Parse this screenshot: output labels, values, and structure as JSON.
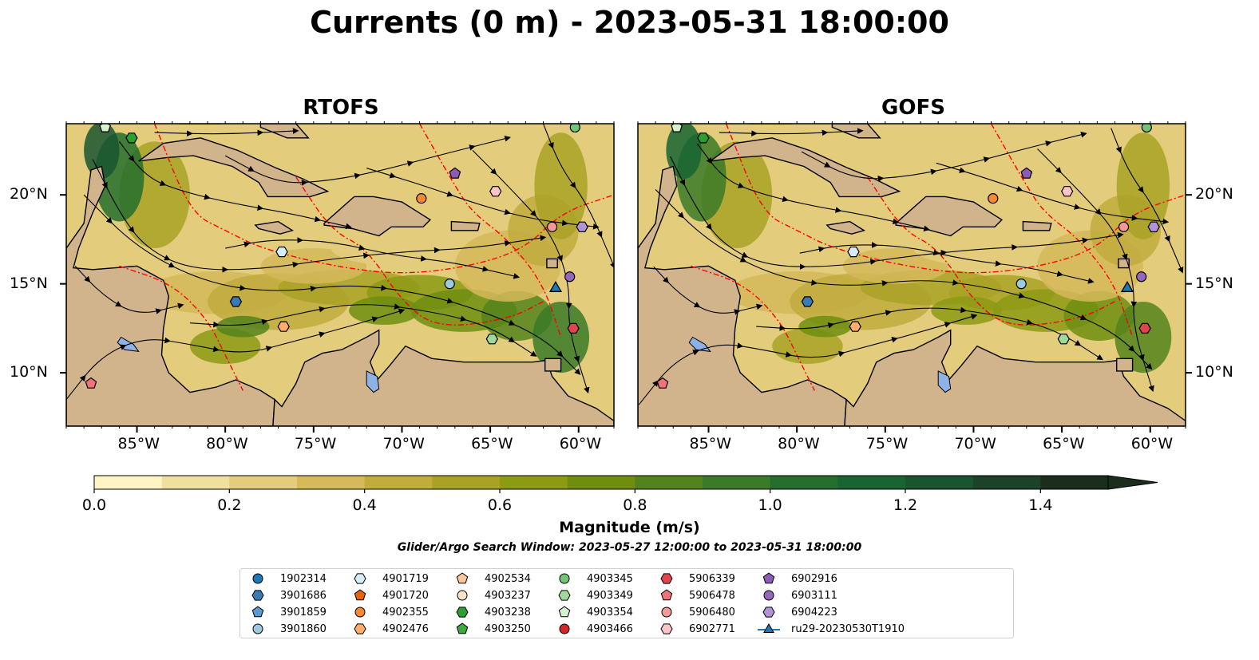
{
  "title": "Currents (0 m) - 2023-05-31 18:00:00",
  "panels": [
    {
      "title": "RTOFS"
    },
    {
      "title": "GOFS"
    }
  ],
  "axes": {
    "lon_ticks": [
      "85°W",
      "80°W",
      "75°W",
      "70°W",
      "65°W",
      "60°W"
    ],
    "lat_ticks": [
      "20°N",
      "15°N",
      "10°N"
    ],
    "lon_range": [
      -89,
      -58
    ],
    "lat_range": [
      7,
      24
    ]
  },
  "colorbar": {
    "label": "Magnitude (m/s)",
    "ticks": [
      "0.0",
      "0.2",
      "0.4",
      "0.6",
      "0.8",
      "1.0",
      "1.2",
      "1.4"
    ],
    "range": [
      0,
      1.5
    ],
    "extend": "max",
    "colors": [
      "#fdf5c4",
      "#f0e0a0",
      "#e3cc7c",
      "#d5b95a",
      "#c1ac3e",
      "#a9a227",
      "#8d9a14",
      "#6f8e10",
      "#54821c",
      "#3b7a28",
      "#256e2e",
      "#186432",
      "#1a5530",
      "#1c4229",
      "#1b2e1d"
    ]
  },
  "search_window": "Glider/Argo Search Window: 2023-05-27 12:00:00 to 2023-05-31 18:00:00",
  "colors": {
    "land": "#d2b48c",
    "eez": "#ff0000",
    "lake": "#8fb2e6",
    "streamline": "#000000"
  },
  "legend": [
    {
      "label": "1902314",
      "marker": "circle",
      "color": "#1f77b4"
    },
    {
      "label": "3901686",
      "marker": "hexagon",
      "color": "#3a7ab5"
    },
    {
      "label": "3901859",
      "marker": "pentagon",
      "color": "#5b9bd5"
    },
    {
      "label": "3901860",
      "marker": "circle",
      "color": "#9ecae1"
    },
    {
      "label": "4901719",
      "marker": "hexagon",
      "color": "#d6ecf8"
    },
    {
      "label": "4901720",
      "marker": "pentagon",
      "color": "#e6640f"
    },
    {
      "label": "4902355",
      "marker": "circle",
      "color": "#f58a33"
    },
    {
      "label": "4902476",
      "marker": "hexagon",
      "color": "#fdae6b"
    },
    {
      "label": "4902534",
      "marker": "pentagon",
      "color": "#fdc79a"
    },
    {
      "label": "4903237",
      "marker": "circle",
      "color": "#fee3c8"
    },
    {
      "label": "4903238",
      "marker": "hexagon",
      "color": "#2ca02c"
    },
    {
      "label": "4903250",
      "marker": "pentagon",
      "color": "#3daa3d"
    },
    {
      "label": "4903345",
      "marker": "circle",
      "color": "#74c476"
    },
    {
      "label": "4903349",
      "marker": "hexagon",
      "color": "#a1d99b"
    },
    {
      "label": "4903354",
      "marker": "pentagon",
      "color": "#d4f2cf"
    },
    {
      "label": "4903466",
      "marker": "circle",
      "color": "#d62728"
    },
    {
      "label": "5906339",
      "marker": "hexagon",
      "color": "#e0444d"
    },
    {
      "label": "5906478",
      "marker": "pentagon",
      "color": "#ef7378"
    },
    {
      "label": "5906480",
      "marker": "circle",
      "color": "#f4999a"
    },
    {
      "label": "6902771",
      "marker": "hexagon",
      "color": "#fbc4c8"
    },
    {
      "label": "6902916",
      "marker": "pentagon",
      "color": "#8c5bb5"
    },
    {
      "label": "6903111",
      "marker": "circle",
      "color": "#9467bd"
    },
    {
      "label": "6904223",
      "marker": "hexagon",
      "color": "#b294d6"
    },
    {
      "label": "ru29-20230530T1910",
      "marker": "triangle-line",
      "color": "#1f77b4"
    }
  ],
  "floats": [
    {
      "id": "4903238",
      "lon": -85.3,
      "lat": 23.2
    },
    {
      "id": "4903354",
      "lon": -86.8,
      "lat": 23.8
    },
    {
      "id": "4903345",
      "lon": -60.2,
      "lat": 23.8
    },
    {
      "id": "6902916",
      "lon": -67.0,
      "lat": 21.2
    },
    {
      "id": "4902355",
      "lon": -68.9,
      "lat": 19.8
    },
    {
      "id": "6902771",
      "lon": -64.7,
      "lat": 20.2
    },
    {
      "id": "6904223",
      "lon": -59.8,
      "lat": 18.2
    },
    {
      "id": "5906480",
      "lon": -61.5,
      "lat": 18.2
    },
    {
      "id": "4901719",
      "lon": -76.8,
      "lat": 16.8
    },
    {
      "id": "3901860",
      "lon": -67.3,
      "lat": 15.0
    },
    {
      "id": "6903111",
      "lon": -60.5,
      "lat": 15.4
    },
    {
      "id": "3901686",
      "lon": -79.4,
      "lat": 14.0
    },
    {
      "id": "4902476",
      "lon": -76.7,
      "lat": 12.6
    },
    {
      "id": "4903349",
      "lon": -64.9,
      "lat": 11.9
    },
    {
      "id": "5906339",
      "lon": -60.3,
      "lat": 12.5
    },
    {
      "id": "5906478",
      "lon": -87.6,
      "lat": 9.4
    }
  ],
  "glider": {
    "id": "ru29-20230530T1910",
    "lon": -61.3,
    "lat": 14.7
  }
}
